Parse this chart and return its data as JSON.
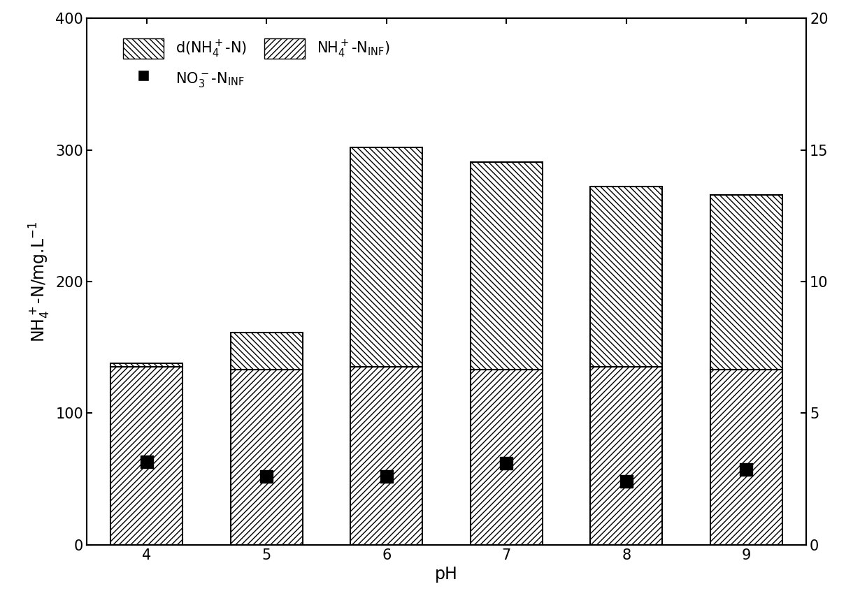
{
  "ph_values": [
    4,
    5,
    6,
    7,
    8,
    9
  ],
  "nh4_inf": [
    135,
    133,
    135,
    133,
    135,
    133
  ],
  "d_nh4": [
    3,
    28,
    167,
    158,
    137,
    133
  ],
  "no3_inf_left": [
    63,
    52,
    52,
    62,
    48,
    57
  ],
  "ylabel_left": "NH$_4^+$-N/mg.L$^{-1}$",
  "xlabel": "pH",
  "ylim_left": [
    0,
    400
  ],
  "ylim_right": [
    0,
    20
  ],
  "yticks_left": [
    0,
    100,
    200,
    300,
    400
  ],
  "yticks_right": [
    0,
    5,
    10,
    15,
    20
  ],
  "bar_width": 0.6,
  "background_color": "#ffffff",
  "legend_fontsize": 15,
  "axis_fontsize": 17,
  "tick_fontsize": 15
}
